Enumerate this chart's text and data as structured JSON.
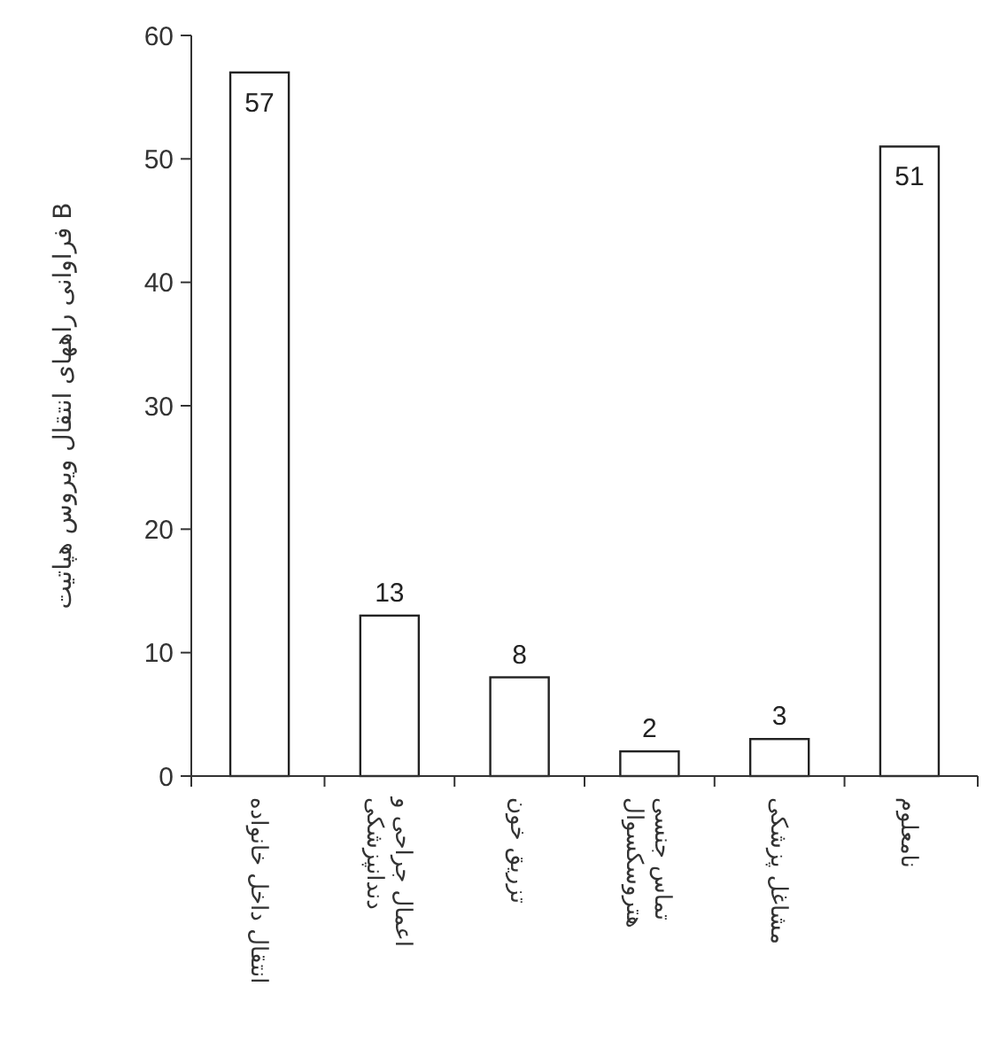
{
  "chart_data": {
    "type": "bar",
    "ylabel": "فراوانی راههای انتقال ویروس هپاتیت B",
    "categories": [
      "انتقال داخل خانواده",
      "اعمال جراحی و دندانپزشکی",
      "تزریق خون",
      "تماس جنسی هتروسکسوال",
      "مشاغل پزشکی",
      "نامعلوم"
    ],
    "values": [
      57,
      13,
      8,
      2,
      3,
      51
    ],
    "color": "#ffffff",
    "ylim": [
      0,
      60
    ],
    "yticks": [
      0,
      10,
      20,
      30,
      40,
      50,
      60
    ],
    "data_labels": true,
    "grid": false
  }
}
